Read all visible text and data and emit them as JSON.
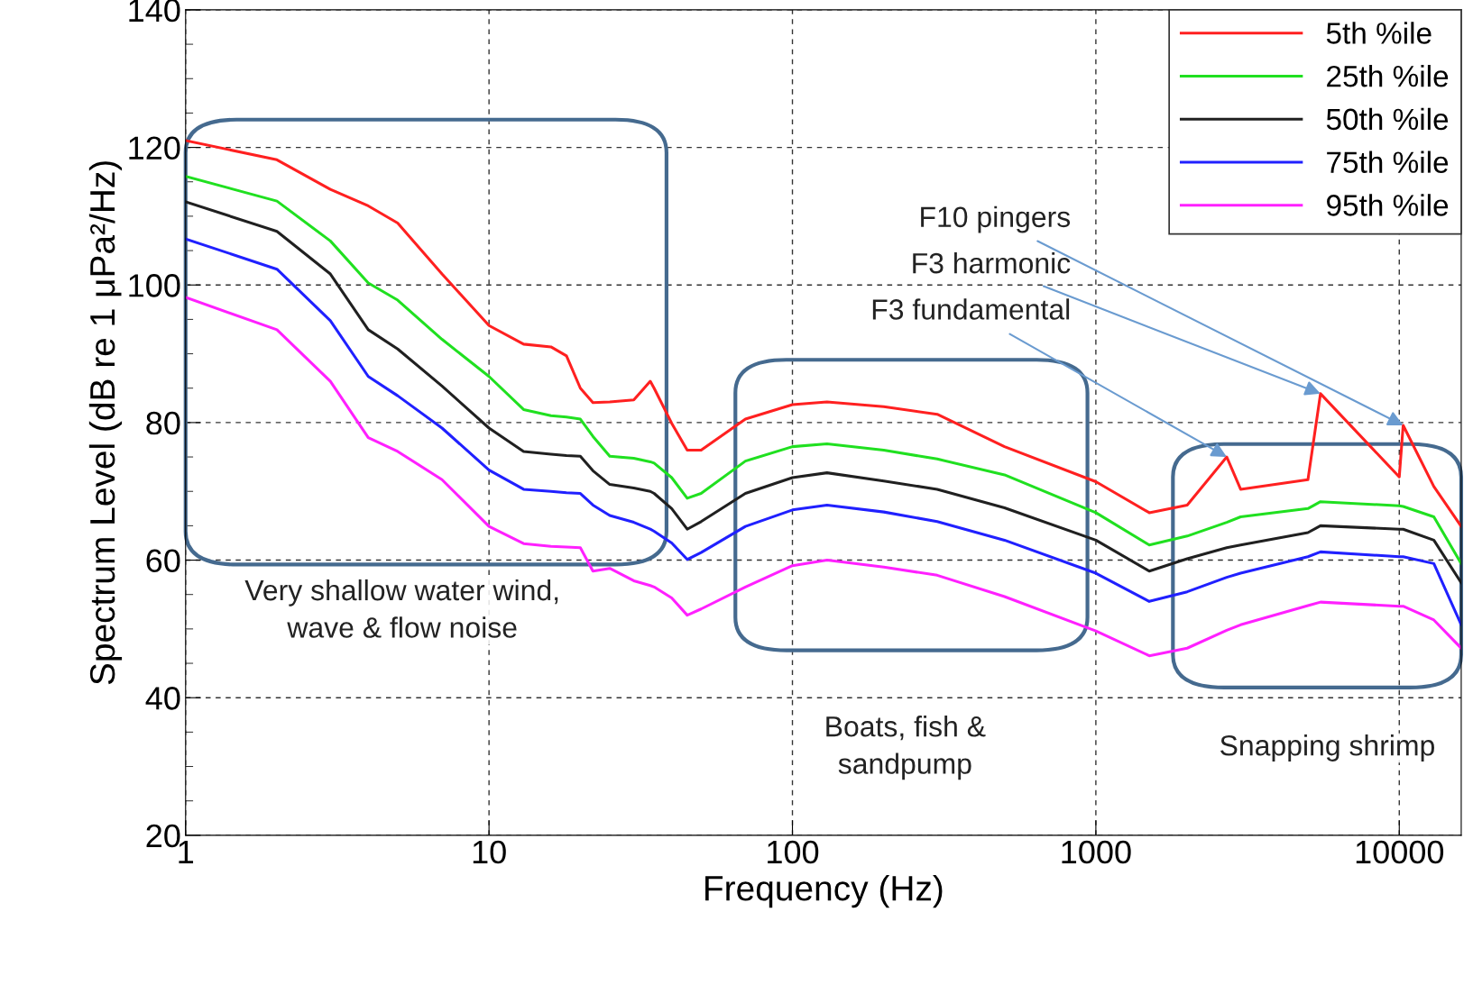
{
  "chart_data": {
    "type": "line",
    "xlabel": "Frequency (Hz)",
    "ylabel": "Spectrum Level (dB re 1 μPa²/Hz)",
    "log": "x",
    "xlim": [
      1,
      16000
    ],
    "xticks": [
      1,
      10,
      100,
      1000,
      10000
    ],
    "ylim": [
      20,
      140
    ],
    "yticks": [
      20,
      40,
      60,
      80,
      100,
      120,
      140
    ],
    "grid": true,
    "legend": "top right",
    "line_style": "solid",
    "marker": "none",
    "x": [
      1,
      2,
      3,
      4,
      5,
      7,
      10,
      13,
      16,
      18,
      20,
      22,
      25,
      30,
      34,
      35,
      40,
      45,
      50,
      70,
      100,
      130,
      200,
      300,
      500,
      1000,
      1500,
      2000,
      2700,
      3000,
      5000,
      5500,
      10000,
      10300,
      13000,
      16000
    ],
    "series": [
      {
        "name": "5th %ile",
        "color": "#ff2020",
        "values": [
          121,
          118.2,
          113.9,
          111.5,
          109,
          101.6,
          94.1,
          91.4,
          91,
          89.7,
          85,
          82.9,
          83,
          83.3,
          86,
          85,
          79.9,
          76,
          76,
          80.5,
          82.6,
          83,
          82.3,
          81.2,
          76.5,
          71.4,
          66.9,
          68,
          75,
          70.3,
          71.7,
          84.2,
          72.1,
          79.6,
          70.7,
          64.9
        ]
      },
      {
        "name": "25th %ile",
        "color": "#20e020",
        "values": [
          115.8,
          112.2,
          106.4,
          100.3,
          97.8,
          92.1,
          86.7,
          81.9,
          81,
          80.8,
          80.5,
          78,
          75.1,
          74.8,
          74.3,
          74.1,
          72,
          69,
          69.7,
          74.4,
          76.5,
          76.9,
          76,
          74.7,
          72.4,
          66.9,
          62.2,
          63.5,
          65.5,
          66.3,
          67.5,
          68.5,
          67.9,
          67.8,
          66.3,
          59.5
        ]
      },
      {
        "name": "50th %ile",
        "color": "#202020",
        "values": [
          112.1,
          107.8,
          101.6,
          93.5,
          90.7,
          85.3,
          79.2,
          75.8,
          75.4,
          75.2,
          75.1,
          73,
          71,
          70.5,
          70,
          69.7,
          67.5,
          64.5,
          65.6,
          69.7,
          72,
          72.7,
          71.5,
          70.3,
          67.6,
          62.9,
          58.4,
          60.2,
          61.8,
          62.2,
          64,
          65,
          64.5,
          64.5,
          62.9,
          56.7
        ]
      },
      {
        "name": "75th %ile",
        "color": "#2020ff",
        "values": [
          106.7,
          102.3,
          94.8,
          86.7,
          83.9,
          79.2,
          73.1,
          70.3,
          70,
          69.8,
          69.7,
          68,
          66.5,
          65.5,
          64.5,
          64.2,
          62.5,
          60.1,
          61.1,
          64.9,
          67.3,
          68,
          67,
          65.6,
          62.9,
          58.1,
          54,
          55.4,
          57.5,
          58.1,
          60.5,
          61.2,
          60.5,
          60.5,
          59.5,
          50.6
        ]
      },
      {
        "name": "95th %ile",
        "color": "#ff20ff",
        "values": [
          98.2,
          93.5,
          86,
          77.8,
          75.8,
          71.7,
          64.9,
          62.4,
          62,
          61.9,
          61.8,
          58.4,
          58.8,
          57,
          56.3,
          56.1,
          54.5,
          52,
          52.9,
          56.1,
          59.2,
          60,
          59,
          57.8,
          54.7,
          49.7,
          46.1,
          47.2,
          49.8,
          50.6,
          53.4,
          53.9,
          53.3,
          53.3,
          51.3,
          47.2
        ]
      }
    ],
    "annotations": [
      {
        "text": "F10 pingers",
        "x": 10300,
        "y": 79.6
      },
      {
        "text": "F3 harmonic",
        "x": 5500,
        "y": 84.2
      },
      {
        "text": "F3 fundamental",
        "x": 2700,
        "y": 75
      },
      "Very shallow water wind,\nwave & flow noise",
      "Boats, fish &\nsandpump",
      "Snapping shrimp"
    ]
  }
}
